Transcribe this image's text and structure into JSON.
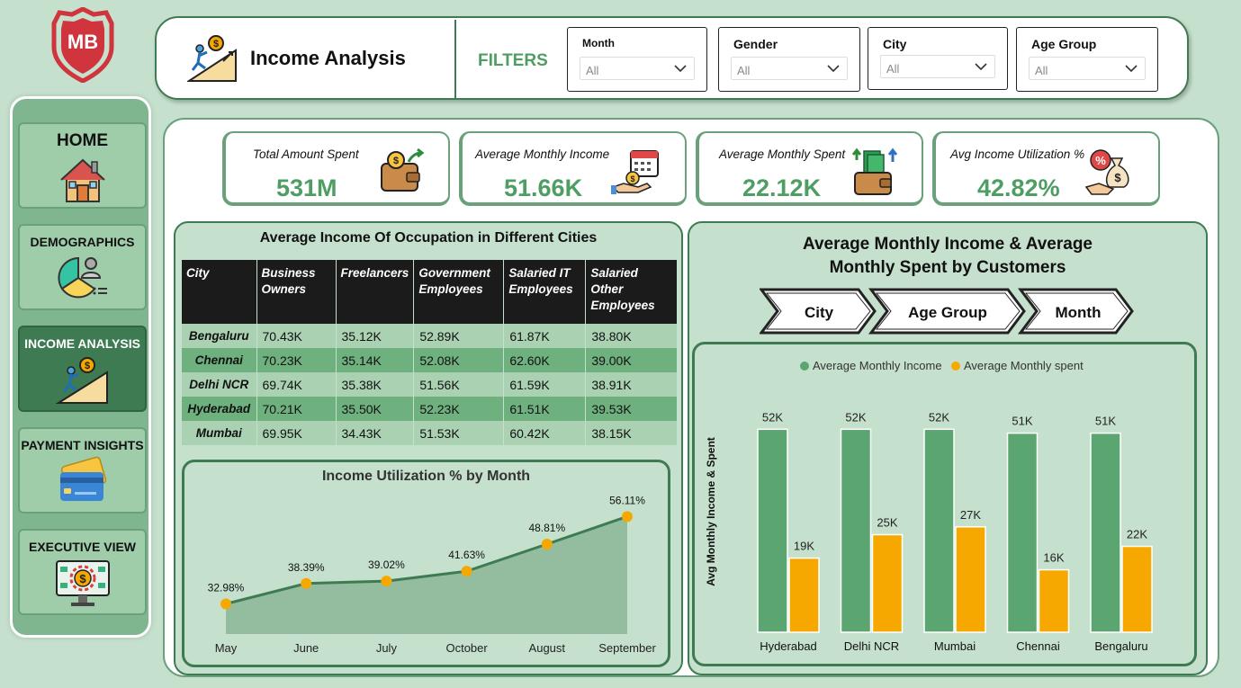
{
  "logo": {
    "text": "MB",
    "color": "#d0343d"
  },
  "sidebar": {
    "items": [
      {
        "label": "HOME",
        "icon": "house-icon"
      },
      {
        "label": "DEMOGRAPHICS",
        "icon": "pie-user-icon"
      },
      {
        "label": "INCOME ANALYSIS",
        "icon": "climbing-coin-icon",
        "active": true
      },
      {
        "label": "PAYMENT INSIGHTS",
        "icon": "credit-card-icon"
      },
      {
        "label": "EXECUTIVE VIEW",
        "icon": "monitor-dollar-icon"
      }
    ]
  },
  "header": {
    "title": "Income Analysis",
    "filters_label": "FILTERS",
    "filters": [
      {
        "label": "Month",
        "value": "All"
      },
      {
        "label": "Gender",
        "value": "All"
      },
      {
        "label": "City",
        "value": "All"
      },
      {
        "label": "Age Group",
        "value": "All"
      }
    ]
  },
  "kpis": [
    {
      "label": "Total Amount Spent",
      "value": "531M",
      "icon": "wallet-coin-icon"
    },
    {
      "label": "Average Monthly Income",
      "value": "51.66K",
      "icon": "calendar-money-icon"
    },
    {
      "label": "Average Monthly Spent",
      "value": "22.12K",
      "icon": "wallet-cash-icon"
    },
    {
      "label": "Avg Income Utilization %",
      "value": "42.82%",
      "icon": "money-bag-percent-icon"
    }
  ],
  "occupation_table": {
    "title": "Average Income Of Occupation in Different Cities",
    "columns": [
      "City",
      "Business Owners",
      "Freelancers",
      "Government Employees",
      "Salaried IT Employees",
      "Salaried Other Employees"
    ],
    "rows": [
      [
        "Bengaluru",
        "70.43K",
        "35.12K",
        "52.89K",
        "61.87K",
        "38.80K"
      ],
      [
        "Chennai",
        "70.23K",
        "35.14K",
        "52.08K",
        "62.60K",
        "39.00K"
      ],
      [
        "Delhi NCR",
        "69.74K",
        "35.38K",
        "51.56K",
        "61.59K",
        "38.91K"
      ],
      [
        "Hyderabad",
        "70.21K",
        "35.50K",
        "52.23K",
        "61.51K",
        "39.53K"
      ],
      [
        "Mumbai",
        "69.95K",
        "34.43K",
        "51.53K",
        "60.42K",
        "38.15K"
      ]
    ]
  },
  "colors": {
    "accent_green": "#4e9e63",
    "dark_green": "#3e7b53",
    "bar_income": "#5aa570",
    "bar_spent": "#f7a800",
    "line": "#3e7b53",
    "marker": "#f7a800"
  },
  "chart_data": [
    {
      "type": "area",
      "title": "Income Utilization % by Month",
      "categories": [
        "May",
        "June",
        "July",
        "October",
        "August",
        "September"
      ],
      "values": [
        32.98,
        38.39,
        39.02,
        41.63,
        48.81,
        56.11
      ],
      "labels": [
        "32.98%",
        "38.39%",
        "39.02%",
        "41.63%",
        "48.81%",
        "56.11%"
      ],
      "ylim": [
        25,
        60
      ]
    },
    {
      "type": "bar",
      "title": "Average Monthly Income & Average Monthly Spent by Customers",
      "drill_levels": [
        "City",
        "Age Group",
        "Month"
      ],
      "ylabel": "Avg Monthly Income & Spent",
      "categories": [
        "Hyderabad",
        "Delhi NCR",
        "Mumbai",
        "Chennai",
        "Bengaluru"
      ],
      "legend": "top",
      "ylim": [
        0,
        60
      ],
      "series": [
        {
          "name": "Average Monthly Income",
          "values": [
            52,
            52,
            52,
            51,
            51
          ],
          "labels": [
            "52K",
            "52K",
            "52K",
            "51K",
            "51K"
          ]
        },
        {
          "name": "Average Monthly spent",
          "values": [
            19,
            25,
            27,
            16,
            22
          ],
          "labels": [
            "19K",
            "25K",
            "27K",
            "16K",
            "22K"
          ]
        }
      ]
    }
  ]
}
